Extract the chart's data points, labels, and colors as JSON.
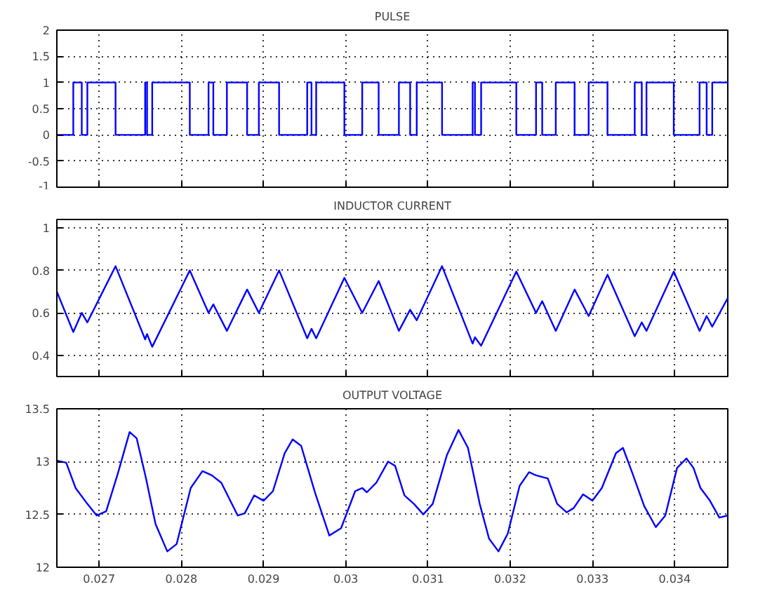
{
  "chart_data": [
    {
      "type": "step",
      "title": "PULSE",
      "xlim": [
        0.026486,
        0.034646
      ],
      "xticks": [
        0.027,
        0.028,
        0.029,
        0.03,
        0.031,
        0.032,
        0.033,
        0.034
      ],
      "ylim": [
        -1,
        2
      ],
      "yticks": [
        -1,
        -0.5,
        0,
        0.5,
        1,
        1.5,
        2
      ],
      "grid": true,
      "tick_labels": "y",
      "series": [
        {
          "color": "#0000ff",
          "x": [
            0.026486,
            0.026686,
            0.026789,
            0.026857,
            0.0272,
            0.02756,
            0.027583,
            0.027646,
            0.028103,
            0.028331,
            0.028389,
            0.028554,
            0.0288,
            0.028943,
            0.029189,
            0.029531,
            0.029583,
            0.02964,
            0.029983,
            0.0302,
            0.0304,
            0.030646,
            0.030783,
            0.030863,
            0.031171,
            0.031543,
            0.031571,
            0.031646,
            0.032074,
            0.032314,
            0.032389,
            0.032554,
            0.032783,
            0.032954,
            0.033183,
            0.033514,
            0.0336,
            0.033657,
            0.033989,
            0.034303,
            0.034389,
            0.034457,
            0.034646
          ],
          "values": [
            0,
            1,
            0,
            1,
            0,
            1,
            0,
            1,
            0,
            1,
            0,
            1,
            0,
            1,
            0,
            1,
            0,
            1,
            0,
            1,
            0,
            1,
            0,
            1,
            0,
            1,
            0,
            1,
            0,
            1,
            0,
            1,
            0,
            1,
            0,
            1,
            0,
            1,
            0,
            1,
            0,
            1,
            1
          ]
        }
      ]
    },
    {
      "type": "line",
      "title": "INDUCTOR CURRENT",
      "xlim": [
        0.026486,
        0.034646
      ],
      "xticks": [
        0.027,
        0.028,
        0.029,
        0.03,
        0.031,
        0.032,
        0.033,
        0.034
      ],
      "ylim": [
        0.3,
        1.04
      ],
      "yticks": [
        0.4,
        0.6,
        0.8,
        1
      ],
      "grid": true,
      "tick_labels": "y",
      "series": [
        {
          "color": "#0000ff",
          "x": [
            0.026486,
            0.026686,
            0.026789,
            0.026857,
            0.0272,
            0.02756,
            0.027583,
            0.027646,
            0.028103,
            0.028331,
            0.028389,
            0.028554,
            0.0288,
            0.028943,
            0.029189,
            0.029531,
            0.029583,
            0.02964,
            0.029983,
            0.0302,
            0.0304,
            0.030646,
            0.030783,
            0.030863,
            0.031171,
            0.031543,
            0.031571,
            0.031646,
            0.032074,
            0.032314,
            0.032389,
            0.032554,
            0.032783,
            0.032954,
            0.033183,
            0.033514,
            0.0336,
            0.033657,
            0.033989,
            0.034303,
            0.034389,
            0.034457,
            0.034646
          ],
          "values": [
            0.7,
            0.51,
            0.6,
            0.555,
            0.82,
            0.475,
            0.5,
            0.44,
            0.8,
            0.6,
            0.64,
            0.515,
            0.71,
            0.6,
            0.8,
            0.48,
            0.525,
            0.48,
            0.765,
            0.6,
            0.75,
            0.515,
            0.615,
            0.565,
            0.82,
            0.455,
            0.485,
            0.445,
            0.795,
            0.6,
            0.655,
            0.515,
            0.71,
            0.585,
            0.78,
            0.49,
            0.555,
            0.515,
            0.795,
            0.515,
            0.585,
            0.535,
            0.67
          ]
        }
      ]
    },
    {
      "type": "line",
      "title": "OUTPUT VOLTAGE",
      "xlim": [
        0.026486,
        0.034646
      ],
      "xticks": [
        0.027,
        0.028,
        0.029,
        0.03,
        0.031,
        0.032,
        0.033,
        0.034
      ],
      "ylim": [
        12,
        13.5
      ],
      "yticks": [
        12,
        12.5,
        13,
        13.5
      ],
      "grid": true,
      "series": [
        {
          "color": "#0000ff",
          "x": [
            0.026486,
            0.0266,
            0.026714,
            0.026857,
            0.026971,
            0.027086,
            0.027229,
            0.027371,
            0.027457,
            0.027571,
            0.027686,
            0.027829,
            0.027943,
            0.028114,
            0.028257,
            0.028371,
            0.028486,
            0.028686,
            0.028771,
            0.028886,
            0.029,
            0.029114,
            0.029257,
            0.029354,
            0.029457,
            0.029629,
            0.0298,
            0.029943,
            0.030114,
            0.0302,
            0.030257,
            0.030371,
            0.030514,
            0.0306,
            0.030714,
            0.030829,
            0.030943,
            0.031057,
            0.031229,
            0.031371,
            0.031486,
            0.031629,
            0.031743,
            0.031857,
            0.031971,
            0.032114,
            0.032229,
            0.032314,
            0.032457,
            0.032571,
            0.032686,
            0.032771,
            0.032886,
            0.033,
            0.033114,
            0.033286,
            0.033371,
            0.033486,
            0.033629,
            0.033771,
            0.033886,
            0.034029,
            0.034143,
            0.034229,
            0.034314,
            0.034429,
            0.034543,
            0.034646
          ],
          "values": [
            13.01,
            12.99,
            12.75,
            12.6,
            12.49,
            12.53,
            12.89,
            13.28,
            13.22,
            12.84,
            12.41,
            12.15,
            12.22,
            12.75,
            12.91,
            12.87,
            12.8,
            12.49,
            12.51,
            12.68,
            12.63,
            12.72,
            13.08,
            13.21,
            13.15,
            12.7,
            12.3,
            12.37,
            12.72,
            12.75,
            12.71,
            12.8,
            13.0,
            12.96,
            12.68,
            12.6,
            12.5,
            12.6,
            13.06,
            13.3,
            13.13,
            12.6,
            12.27,
            12.15,
            12.32,
            12.77,
            12.9,
            12.87,
            12.84,
            12.6,
            12.52,
            12.56,
            12.69,
            12.63,
            12.75,
            13.08,
            13.13,
            12.89,
            12.58,
            12.38,
            12.49,
            12.94,
            13.03,
            12.94,
            12.75,
            12.63,
            12.47,
            12.49
          ]
        }
      ]
    }
  ]
}
